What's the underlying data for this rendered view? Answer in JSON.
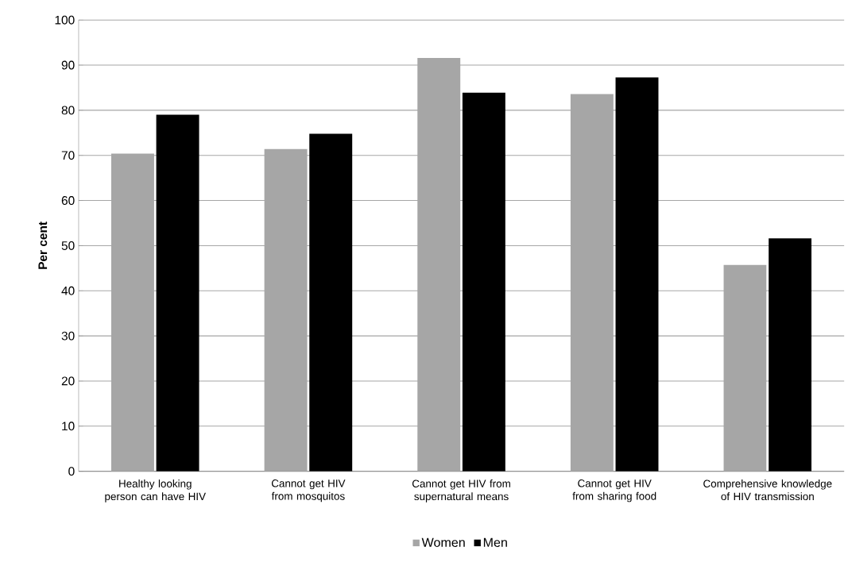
{
  "chart_data": {
    "type": "bar",
    "ylabel": "Per cent",
    "categories": [
      "Healthy looking person can have HIV",
      "Cannot get HIV from mosquitos",
      "Cannot get HIV from supernatural means",
      "Cannot get HIV from sharing food",
      "Comprehensive knowledge of HIV transmission"
    ],
    "series": [
      {
        "name": "Women",
        "color": "#a6a6a6",
        "values": [
          70.4,
          71.4,
          91.6,
          83.6,
          45.7
        ]
      },
      {
        "name": "Men",
        "color": "#000000",
        "values": [
          79.0,
          74.8,
          83.9,
          87.3,
          51.6
        ]
      }
    ],
    "ylim": [
      0,
      100
    ],
    "yticks": [
      0,
      10,
      20,
      30,
      40,
      50,
      60,
      70,
      80,
      90,
      100
    ],
    "grid": "y",
    "legend": "bottom"
  }
}
